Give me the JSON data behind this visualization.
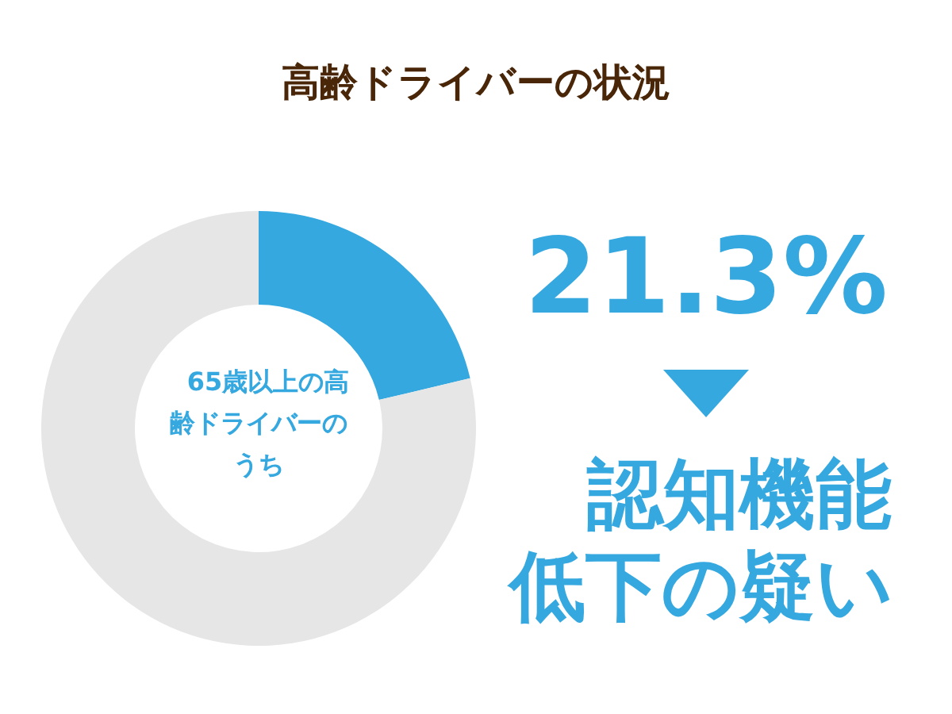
{
  "chart_data": {
    "type": "donut",
    "title": "高齢ドライバーの状況",
    "categories": [
      "認知機能低下の疑い",
      null
    ],
    "values": [
      21.3,
      78.7
    ],
    "colors": [
      "#35a8e0",
      "#e6e6e6"
    ],
    "value_labels": [
      "21.3%",
      null
    ],
    "annotations": [
      "65歳以上の高齢ドライバーのうち"
    ]
  }
}
